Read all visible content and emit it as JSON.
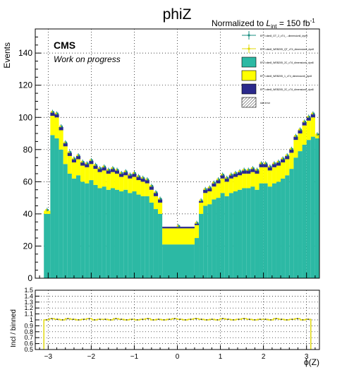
{
  "title": "phiZ",
  "norm_prefix": "Normalized to ",
  "norm_L": "L",
  "norm_sub": "int",
  "norm_mid": " = 150 fb",
  "norm_sup": "-1",
  "cms_label": "CMS",
  "work_label": "Work on progress",
  "colors": {
    "teal": "#2cb9a4",
    "yellow": "#ffff00",
    "navy": "#2b2a8c",
    "ratio_line": "#e0d800",
    "data_marker": "#1a8f80"
  },
  "legend": [
    {
      "label": "EFT=dim8_GT_2_cT4_...dimension6_dyn8",
      "style": "marker-teal"
    },
    {
      "label": "EFT=dim8_WEB205_QT_cT4_dimension6_dyn8",
      "style": "marker-yellow"
    },
    {
      "label": "EFT=dim8_WEB205_2C_cT4_dimension6_dyn8",
      "style": "box-teal"
    },
    {
      "label": "EFT=dim8_WEB205_1_cT4_dimension6_dyn8",
      "style": "box-yellow"
    },
    {
      "label": "EFT=dim8_WEB205_2C_cT4_dimension6_dyn8",
      "style": "box-navy"
    },
    {
      "label": "stat error",
      "style": "box-hatch"
    }
  ],
  "chart_data": [
    {
      "type": "area",
      "ylabel": "Events",
      "xlabel": "ϕ(Z)",
      "xlim": [
        -3.3,
        3.3
      ],
      "ylim": [
        0,
        155
      ],
      "xticks": [
        "−3",
        "−2",
        "−1",
        "0",
        "1",
        "2",
        "3"
      ],
      "yticks": [
        "0",
        "20",
        "40",
        "60",
        "80",
        "100",
        "120",
        "140"
      ],
      "grid": true,
      "x_edges": [
        -3.1,
        -2.95,
        -2.85,
        -2.75,
        -2.65,
        -2.55,
        -2.45,
        -2.35,
        -2.25,
        -2.15,
        -2.05,
        -1.95,
        -1.85,
        -1.75,
        -1.65,
        -1.55,
        -1.45,
        -1.35,
        -1.25,
        -1.15,
        -1.05,
        -0.95,
        -0.85,
        -0.75,
        -0.65,
        -0.55,
        -0.45,
        -0.35,
        0.4,
        0.5,
        0.6,
        0.7,
        0.8,
        0.9,
        1.0,
        1.1,
        1.2,
        1.3,
        1.4,
        1.5,
        1.6,
        1.7,
        1.8,
        1.9,
        2.0,
        2.1,
        2.2,
        2.3,
        2.4,
        2.5,
        2.6,
        2.7,
        2.8,
        2.9,
        3.0,
        3.1,
        3.2,
        3.3
      ],
      "series": [
        {
          "color": "teal",
          "values": [
            40,
            89,
            87,
            80,
            71,
            65,
            62,
            64,
            60,
            59,
            61,
            58,
            56,
            57,
            55,
            56,
            55,
            54,
            55,
            53,
            54,
            52,
            51,
            51,
            47,
            43,
            40,
            21,
            25,
            40,
            45,
            46,
            49,
            50,
            53,
            51,
            53,
            54,
            55,
            56,
            56,
            57,
            55,
            59,
            59,
            57,
            59,
            60,
            62,
            64,
            68,
            75,
            79,
            83,
            86,
            88,
            87
          ]
        },
        {
          "color": "yellow",
          "values": [
            2,
            12,
            13,
            12,
            11,
            11,
            10,
            10,
            10,
            10,
            10,
            10,
            10,
            10,
            10,
            10,
            10,
            9,
            9,
            9,
            9,
            9,
            9,
            8,
            8,
            8,
            7,
            10,
            8,
            7,
            8,
            8,
            8,
            9,
            9,
            9,
            9,
            9,
            9,
            9,
            9,
            9,
            10,
            10,
            10,
            10,
            10,
            10,
            10,
            10,
            10,
            11,
            11,
            12,
            12,
            12,
            2
          ]
        },
        {
          "color": "navy",
          "values": [
            0,
            2,
            2,
            2,
            2,
            2,
            2,
            2,
            2,
            2,
            2,
            2,
            2,
            2,
            2,
            2,
            2,
            2,
            2,
            2,
            2,
            2,
            2,
            2,
            2,
            2,
            2,
            1,
            1,
            1,
            2,
            2,
            2,
            2,
            2,
            2,
            2,
            2,
            2,
            2,
            2,
            2,
            2,
            2,
            2,
            2,
            2,
            2,
            2,
            2,
            2,
            2,
            2,
            2,
            2,
            2,
            0
          ]
        }
      ]
    },
    {
      "type": "line",
      "ylabel": "Incl / binned",
      "ylim": [
        0.5,
        1.5
      ],
      "yticks": [
        "0.5",
        "0.6",
        "0.7",
        "0.8",
        "0.9",
        "1",
        "1.1",
        "1.2",
        "1.3",
        "1.4",
        "1.5"
      ],
      "x_range": [
        -3.1,
        3.1
      ],
      "values": [
        1.0,
        1.02,
        1.01,
        1.0,
        1.02,
        1.01,
        1.0,
        1.01,
        1.02,
        1.0,
        1.01,
        1.01,
        1.0,
        1.02,
        1.01,
        1.0,
        1.01,
        1.0,
        1.01,
        1.02,
        1.0,
        1.01,
        1.0,
        1.01,
        1.02,
        1.01,
        1.0,
        1.01,
        1.02,
        1.01,
        1.0,
        1.01,
        1.0,
        1.02,
        1.01,
        1.0,
        1.01,
        1.02,
        1.01,
        1.0,
        1.01,
        1.01,
        1.0,
        1.02,
        1.01,
        1.0,
        1.01,
        1.02,
        1.0,
        1.01
      ]
    }
  ]
}
